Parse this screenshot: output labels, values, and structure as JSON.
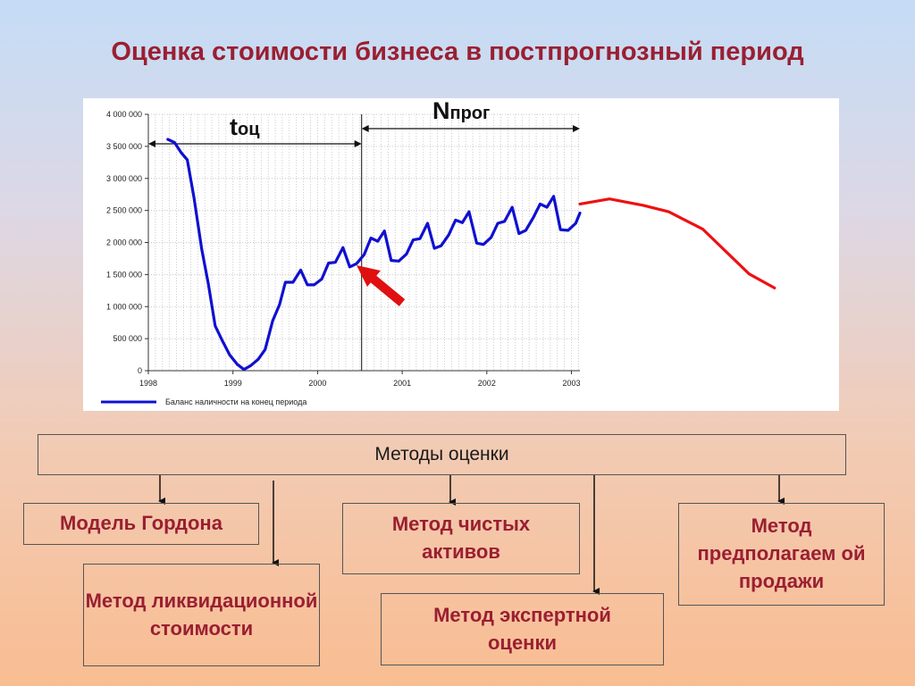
{
  "title": "Оценка стоимости бизнеса в постпрогнозный период",
  "chart_data": {
    "type": "line",
    "ylim": [
      0,
      4000000
    ],
    "y_ticks": [
      "0",
      "500 000",
      "1 000 000",
      "1 500 000",
      "2 000 000",
      "2 500 000",
      "3 000 000",
      "3 500 000",
      "4 000 000"
    ],
    "x_ticks": [
      "1998",
      "1999",
      "2000",
      "2001",
      "2002",
      "2003"
    ],
    "legend": "Баланс наличности на конец периода",
    "grid": true,
    "series": [
      {
        "name": "Баланс наличности на конец периода",
        "color": "#1010d0",
        "points": [
          [
            1998.23,
            3610000
          ],
          [
            1998.31,
            3560000
          ],
          [
            1998.39,
            3400000
          ],
          [
            1998.46,
            3290000
          ],
          [
            1998.54,
            2700000
          ],
          [
            1998.63,
            1900000
          ],
          [
            1998.71,
            1350000
          ],
          [
            1998.79,
            700000
          ],
          [
            1998.87,
            480000
          ],
          [
            1998.96,
            250000
          ],
          [
            1999.05,
            100000
          ],
          [
            1999.13,
            20000
          ],
          [
            1999.21,
            80000
          ],
          [
            1999.3,
            180000
          ],
          [
            1999.38,
            330000
          ],
          [
            1999.47,
            780000
          ],
          [
            1999.55,
            1030000
          ],
          [
            1999.62,
            1380000
          ],
          [
            1999.71,
            1380000
          ],
          [
            1999.8,
            1570000
          ],
          [
            1999.88,
            1340000
          ],
          [
            1999.96,
            1340000
          ],
          [
            2000.05,
            1430000
          ],
          [
            2000.13,
            1680000
          ],
          [
            2000.21,
            1690000
          ],
          [
            2000.3,
            1920000
          ],
          [
            2000.38,
            1620000
          ],
          [
            2000.46,
            1670000
          ],
          [
            2000.55,
            1810000
          ],
          [
            2000.63,
            2070000
          ],
          [
            2000.71,
            2020000
          ],
          [
            2000.79,
            2180000
          ],
          [
            2000.87,
            1720000
          ],
          [
            2000.96,
            1710000
          ],
          [
            2001.05,
            1820000
          ],
          [
            2001.13,
            2040000
          ],
          [
            2001.21,
            2060000
          ],
          [
            2001.3,
            2300000
          ],
          [
            2001.38,
            1910000
          ],
          [
            2001.46,
            1950000
          ],
          [
            2001.55,
            2120000
          ],
          [
            2001.63,
            2350000
          ],
          [
            2001.71,
            2310000
          ],
          [
            2001.79,
            2480000
          ],
          [
            2001.88,
            1990000
          ],
          [
            2001.96,
            1970000
          ],
          [
            2002.05,
            2080000
          ],
          [
            2002.13,
            2300000
          ],
          [
            2002.21,
            2330000
          ],
          [
            2002.3,
            2550000
          ],
          [
            2002.38,
            2140000
          ],
          [
            2002.46,
            2190000
          ],
          [
            2002.55,
            2390000
          ],
          [
            2002.63,
            2600000
          ],
          [
            2002.71,
            2550000
          ],
          [
            2002.79,
            2720000
          ],
          [
            2002.87,
            2200000
          ],
          [
            2002.96,
            2190000
          ],
          [
            2003.05,
            2300000
          ],
          [
            2003.1,
            2460000
          ]
        ]
      },
      {
        "name": "",
        "color": "#ee1111",
        "points": [
          [
            2003.1,
            2600000
          ],
          [
            2003.45,
            2680000
          ],
          [
            2003.85,
            2580000
          ],
          [
            2004.15,
            2480000
          ],
          [
            2004.55,
            2210000
          ],
          [
            2005.1,
            1510000
          ],
          [
            2005.4,
            1290000
          ]
        ]
      }
    ],
    "annotations": [
      {
        "label": "t",
        "sub": "оц"
      },
      {
        "label": "N",
        "sub": "прог"
      }
    ]
  },
  "methods": {
    "top": "Методы оценки",
    "gordon": "Модель Гордона",
    "liquidation": "Метод ликвидационной стоимости",
    "net_assets": "Метод чистых активов",
    "expert": "Метод экспертной оценки",
    "sale": "Метод предполагаем ой продажи"
  }
}
